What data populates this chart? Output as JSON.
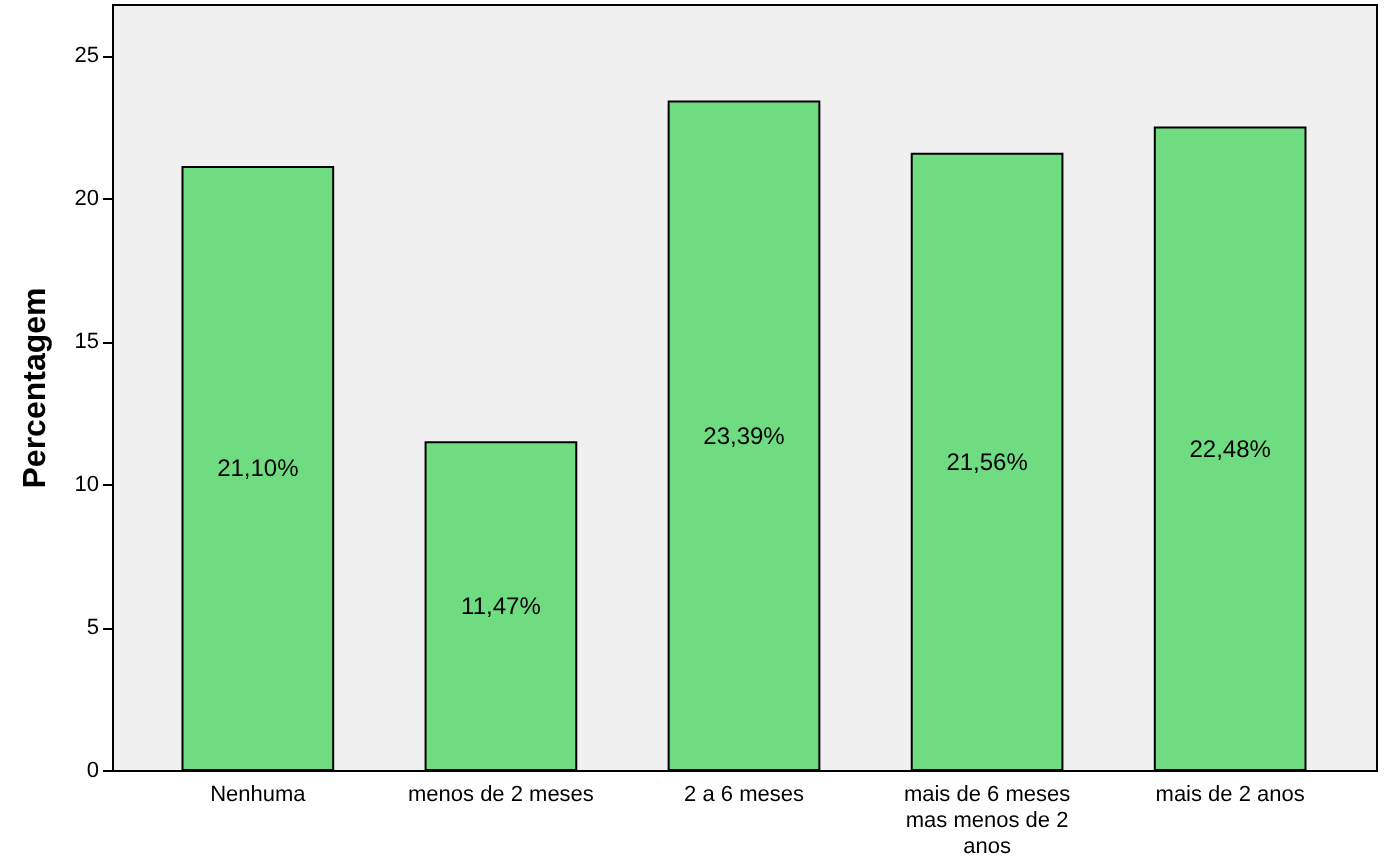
{
  "chart_data": {
    "type": "bar",
    "ylabel": "Percentagem",
    "categories": [
      "Nenhuma",
      "menos de 2 meses",
      "2 a 6 meses",
      "mais de 6 meses mas menos de 2 anos",
      "mais de 2 anos"
    ],
    "values": [
      21.1,
      11.47,
      23.39,
      21.56,
      22.48
    ],
    "value_labels": [
      "21,10%",
      "11,47%",
      "23,39%",
      "21,56%",
      "22,48%"
    ],
    "color": "#6fdc82",
    "ylim": [
      0,
      26.8
    ],
    "yticks": [
      0,
      5,
      10,
      15,
      20,
      25
    ],
    "grid": false
  }
}
